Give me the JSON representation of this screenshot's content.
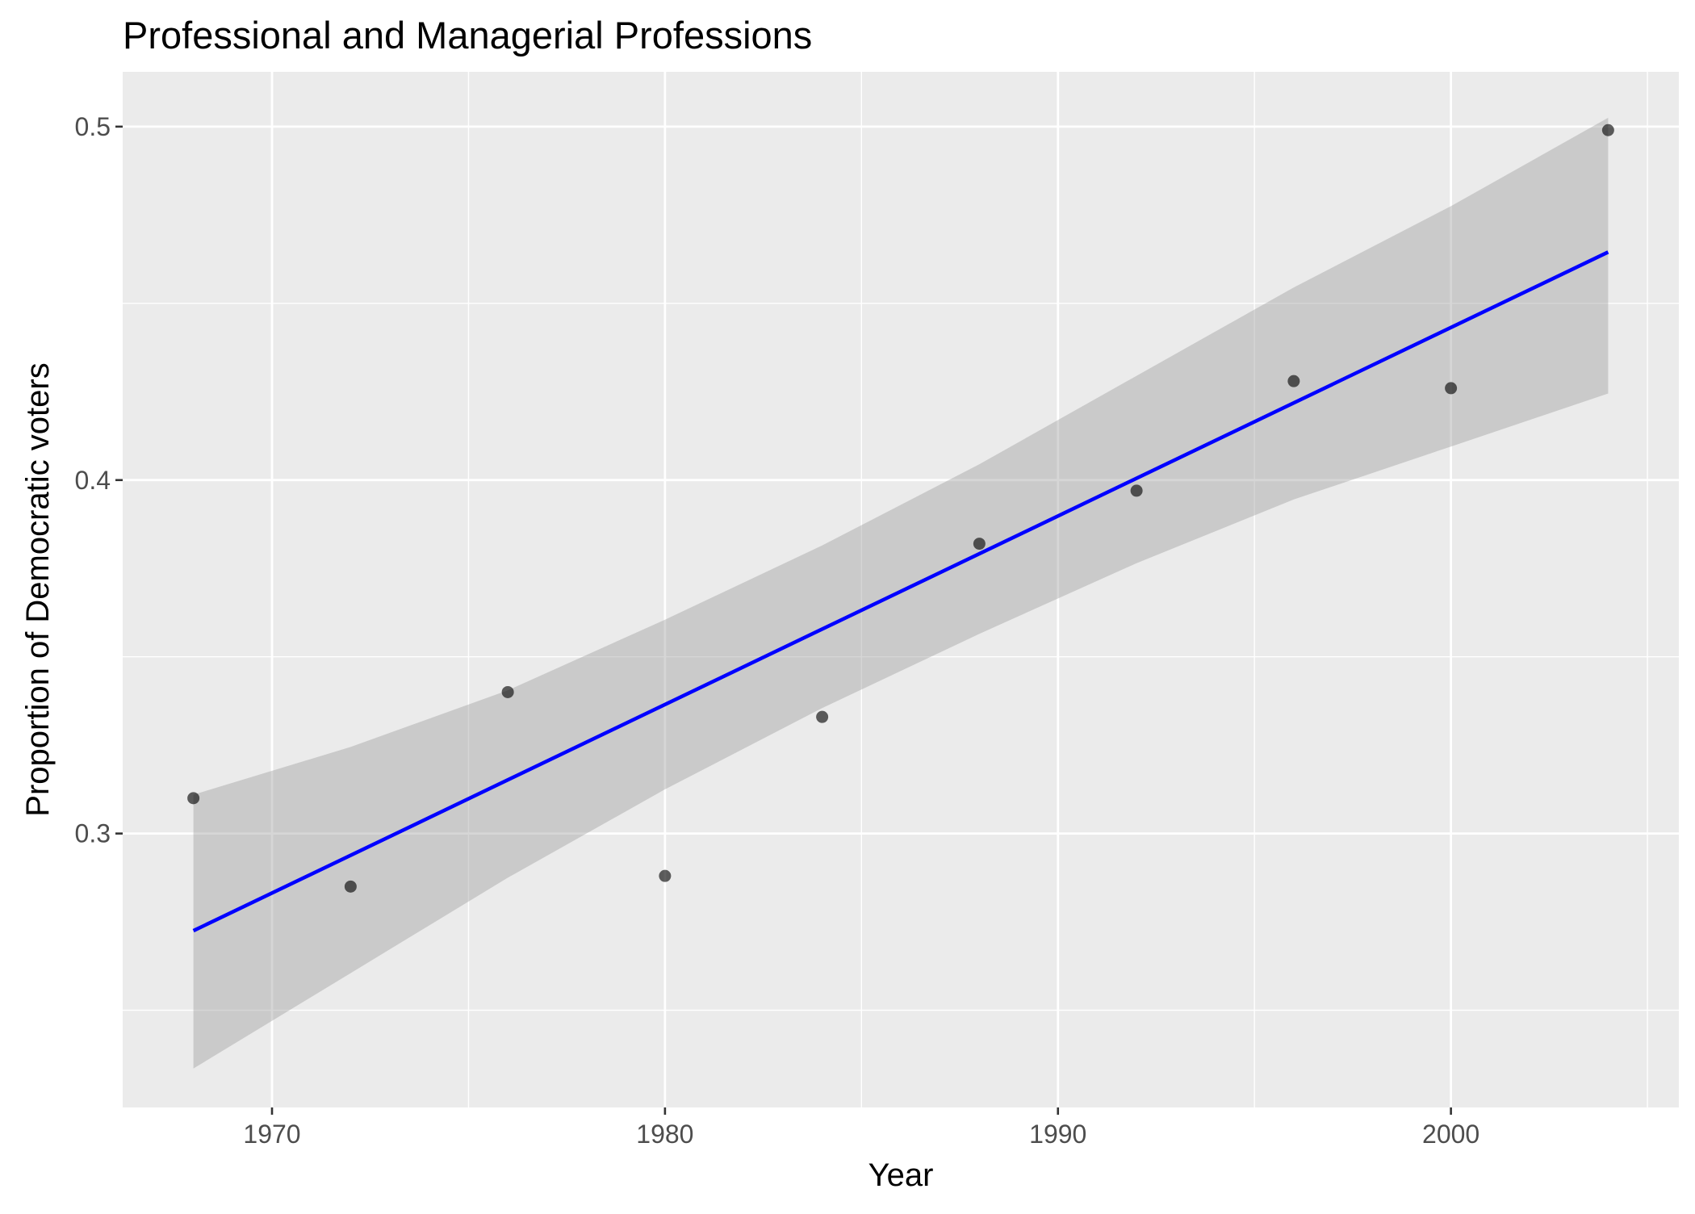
{
  "chart_data": {
    "type": "scatter",
    "title": "Professional and Managerial Professions",
    "xlabel": "Year",
    "ylabel": "Proportion of Democratic voters",
    "xlim": [
      1966.2,
      2005.8
    ],
    "ylim": [
      0.2225,
      0.5155
    ],
    "x_ticks": [
      1970,
      1980,
      1990,
      2000
    ],
    "x_tick_labels": [
      "1970",
      "1980",
      "1990",
      "2000"
    ],
    "y_ticks": [
      0.3,
      0.4,
      0.5
    ],
    "y_tick_labels": [
      "0.3",
      "0.4",
      "0.5"
    ],
    "x_minor_ticks": [
      1975,
      1985,
      1995,
      2005
    ],
    "y_minor_ticks": [
      0.25,
      0.35,
      0.45
    ],
    "grid": true,
    "points": [
      {
        "x": 1968,
        "y": 0.31
      },
      {
        "x": 1972,
        "y": 0.285
      },
      {
        "x": 1976,
        "y": 0.34
      },
      {
        "x": 1980,
        "y": 0.288
      },
      {
        "x": 1984,
        "y": 0.333
      },
      {
        "x": 1988,
        "y": 0.382
      },
      {
        "x": 1992,
        "y": 0.397
      },
      {
        "x": 1996,
        "y": 0.428
      },
      {
        "x": 2000,
        "y": 0.426
      },
      {
        "x": 2004,
        "y": 0.499
      }
    ],
    "fit_line": {
      "x": [
        1968,
        2004
      ],
      "y": [
        0.2725,
        0.4645
      ]
    },
    "confidence_band": {
      "x": [
        1968,
        1972,
        1976,
        1980,
        1984,
        1988,
        1992,
        1996,
        2000,
        2004
      ],
      "lower": [
        0.2335,
        0.2605,
        0.2875,
        0.3125,
        0.3355,
        0.3565,
        0.3765,
        0.3945,
        0.4095,
        0.4245
      ],
      "upper": [
        0.311,
        0.3245,
        0.3405,
        0.3605,
        0.3815,
        0.4045,
        0.4295,
        0.4545,
        0.4775,
        0.5025
      ]
    },
    "colors": {
      "panel_bg": "#EBEBEB",
      "grid": "#FFFFFF",
      "point": "#000000",
      "line": "#0000FF",
      "band": "#999999"
    }
  }
}
